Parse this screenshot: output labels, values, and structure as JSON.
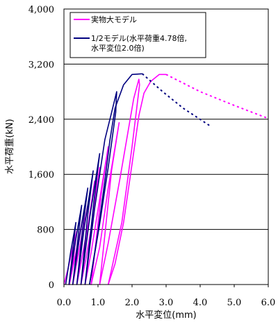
{
  "chart_data": {
    "type": "line",
    "xlabel": "水平変位(mm)",
    "ylabel": "水平荷重(kN)",
    "xlim": [
      0,
      6
    ],
    "ylim": [
      0,
      4000
    ],
    "x_ticks": [
      0,
      1,
      2,
      3,
      4,
      5,
      6
    ],
    "x_tick_labels": [
      "0.0",
      "1.0",
      "2.0",
      "3.0",
      "4.0",
      "5.0",
      "6.0"
    ],
    "y_ticks": [
      0,
      800,
      1600,
      2400,
      3200,
      4000
    ],
    "y_tick_labels": [
      "0",
      "800",
      "1,600",
      "2,400",
      "3,200",
      "4,000"
    ],
    "grid": "horizontal",
    "legend_position": "top-left",
    "series": [
      {
        "name": "実物大モデル",
        "color": "#ff00ff",
        "style": "solid",
        "segments": [
          [
            [
              0,
              0
            ],
            [
              0.12,
              230
            ],
            [
              0.25,
              520
            ],
            [
              0.38,
              780
            ],
            [
              0.28,
              380
            ],
            [
              0.16,
              0
            ],
            [
              0.27,
              270
            ],
            [
              0.42,
              620
            ],
            [
              0.55,
              960
            ],
            [
              0.42,
              560
            ],
            [
              0.26,
              0
            ],
            [
              0.38,
              320
            ],
            [
              0.55,
              780
            ],
            [
              0.72,
              1200
            ],
            [
              0.56,
              720
            ],
            [
              0.38,
              0
            ],
            [
              0.52,
              370
            ],
            [
              0.72,
              900
            ],
            [
              0.9,
              1500
            ],
            [
              0.74,
              960
            ],
            [
              0.5,
              0
            ],
            [
              0.66,
              410
            ],
            [
              0.86,
              1000
            ],
            [
              1.05,
              1700
            ],
            [
              0.88,
              1120
            ],
            [
              0.62,
              0
            ],
            [
              0.8,
              470
            ],
            [
              1.02,
              1150
            ],
            [
              1.3,
              2000
            ],
            [
              1.1,
              1330
            ],
            [
              0.8,
              0
            ],
            [
              1.05,
              540
            ],
            [
              1.3,
              1400
            ],
            [
              1.62,
              2350
            ],
            [
              1.4,
              1660
            ],
            [
              1.05,
              0
            ],
            [
              1.3,
              600
            ],
            [
              1.65,
              1550
            ],
            [
              2.05,
              2700
            ],
            [
              2.2,
              2980
            ],
            [
              2.22,
              2900
            ],
            [
              2.0,
              2000
            ],
            [
              1.7,
              900
            ],
            [
              1.3,
              0
            ]
          ],
          [
            [
              1.3,
              0
            ],
            [
              1.5,
              300
            ],
            [
              1.75,
              900
            ],
            [
              2.0,
              1750
            ],
            [
              2.2,
              2450
            ],
            [
              2.35,
              2780
            ],
            [
              2.55,
              2950
            ],
            [
              2.8,
              3050
            ],
            [
              3.0,
              3050
            ]
          ]
        ]
      },
      {
        "name": "",
        "color": "#ff00ff",
        "style": "dashed",
        "segments": [
          [
            [
              3.0,
              3050
            ],
            [
              4.0,
              2800
            ],
            [
              5.0,
              2600
            ],
            [
              5.95,
              2420
            ]
          ]
        ]
      },
      {
        "name": "1/2モデル(水平荷重4.78倍,\n水平変位2.0倍)",
        "color": "#00007f",
        "style": "solid",
        "segments": [
          [
            [
              0.05,
              0
            ],
            [
              0.2,
              480
            ],
            [
              0.35,
              900
            ],
            [
              0.25,
              450
            ],
            [
              0.15,
              0
            ],
            [
              0.32,
              580
            ],
            [
              0.52,
              1150
            ],
            [
              0.4,
              620
            ],
            [
              0.26,
              0
            ],
            [
              0.46,
              700
            ],
            [
              0.7,
              1400
            ],
            [
              0.55,
              820
            ],
            [
              0.38,
              0
            ],
            [
              0.6,
              840
            ],
            [
              0.86,
              1650
            ],
            [
              0.7,
              1020
            ],
            [
              0.5,
              0
            ],
            [
              0.76,
              980
            ],
            [
              1.05,
              1900
            ],
            [
              0.88,
              1200
            ],
            [
              0.62,
              0
            ],
            [
              0.9,
              1100
            ],
            [
              1.2,
              2100
            ],
            [
              1.4,
              2500
            ],
            [
              1.55,
              2800
            ],
            [
              1.52,
              2500
            ],
            [
              1.3,
              1700
            ],
            [
              1.05,
              880
            ],
            [
              0.75,
              0
            ]
          ],
          [
            [
              0.75,
              0
            ],
            [
              1.0,
              760
            ],
            [
              1.2,
              1500
            ],
            [
              1.35,
              2100
            ],
            [
              1.5,
              2560
            ],
            [
              1.75,
              2900
            ],
            [
              2.0,
              3050
            ],
            [
              2.3,
              3060
            ]
          ]
        ]
      },
      {
        "name": "",
        "color": "#00007f",
        "style": "dashed",
        "segments": [
          [
            [
              2.3,
              3060
            ],
            [
              2.9,
              2800
            ],
            [
              3.5,
              2560
            ],
            [
              4.3,
              2300
            ]
          ]
        ]
      }
    ]
  }
}
